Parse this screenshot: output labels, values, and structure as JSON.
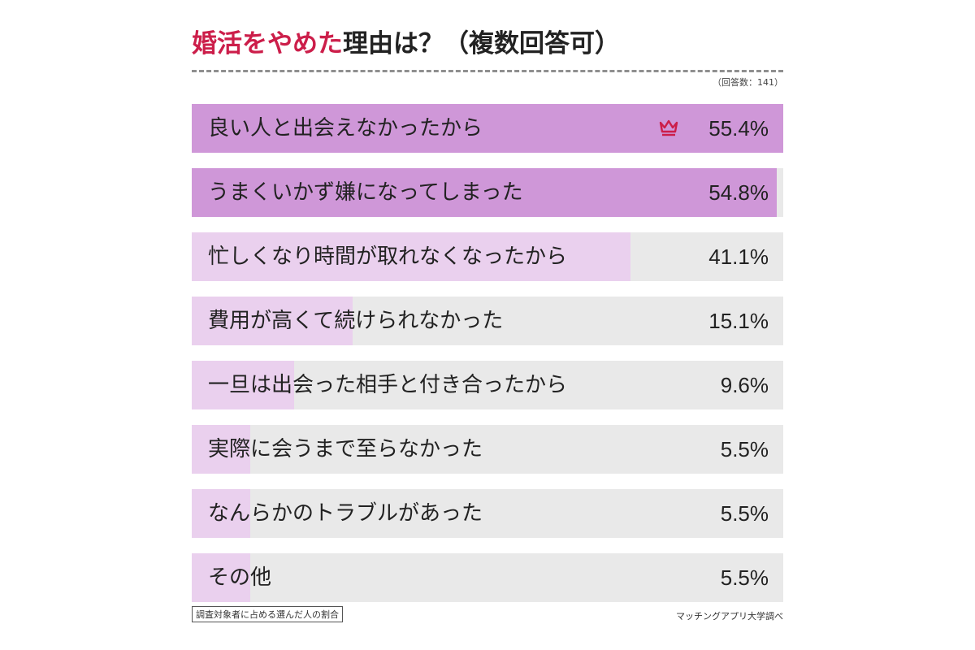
{
  "chart_data": {
    "type": "bar",
    "orientation": "horizontal",
    "title_highlight": "婚活をやめた",
    "title_rest": "理由は？（複数回答可）",
    "respondents": "（回答数：141）",
    "categories": [
      "良い人と出会えなかったから",
      "うまくいかず嫌になってしまった",
      "忙しくなり時間が取れなくなったから",
      "費用が高くて続けられなかった",
      "一旦は出会った相手と付き合ったから",
      "実際に会うまで至らなかった",
      "なんらかのトラブルがあった",
      "その他"
    ],
    "values": [
      55.4,
      54.8,
      41.1,
      15.1,
      9.6,
      5.5,
      5.5,
      5.5
    ],
    "value_labels": [
      "55.4%",
      "54.8%",
      "41.1%",
      "15.1%",
      "9.6%",
      "5.5%",
      "5.5%",
      "5.5%"
    ],
    "xlim": [
      0,
      55.4
    ],
    "top_marker": "crown-icon",
    "note": "調査対象者に占める選んだ人の割合",
    "source": "マッチングアプリ大学調べ",
    "colors": {
      "title_highlight": "#cc1e4a",
      "bar_strong": "#cf97d8",
      "bar_light": "#ead0ee",
      "track": "#e9e9e9",
      "crown": "#cc1e4a"
    }
  }
}
